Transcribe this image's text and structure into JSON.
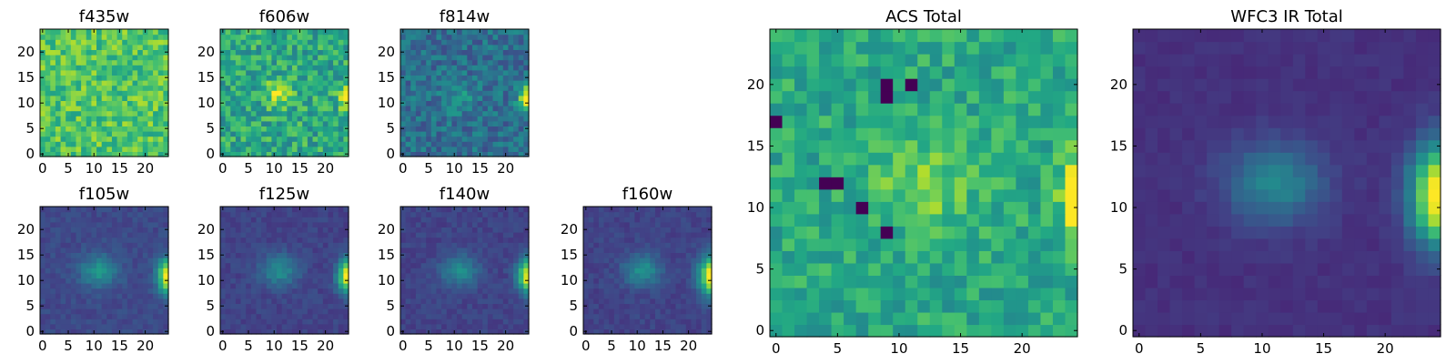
{
  "chart_data": [
    {
      "type": "heatmap",
      "title": "f435w",
      "colormap": "viridis",
      "x_ticks": [
        "0",
        "5",
        "10",
        "15",
        "20"
      ],
      "y_ticks": [
        "0",
        "5",
        "10",
        "15",
        "20"
      ],
      "xlim": [
        -0.5,
        24.5
      ],
      "ylim": [
        -0.5,
        24.5
      ],
      "grid": false,
      "pattern": {
        "background": 0.72,
        "noise": 0.32,
        "seed": 11,
        "blobs": []
      }
    },
    {
      "type": "heatmap",
      "title": "f606w",
      "colormap": "viridis",
      "x_ticks": [
        "0",
        "5",
        "10",
        "15",
        "20"
      ],
      "y_ticks": [
        "0",
        "5",
        "10",
        "15",
        "20"
      ],
      "xlim": [
        -0.5,
        24.5
      ],
      "ylim": [
        -0.5,
        24.5
      ],
      "grid": false,
      "pattern": {
        "background": 0.6,
        "noise": 0.36,
        "seed": 23,
        "blobs": [
          {
            "x": 11,
            "y": 12,
            "sx": 1.8,
            "sy": 1.8,
            "amp": 0.35
          },
          {
            "x": 24.5,
            "y": 11,
            "sx": 1.3,
            "sy": 1.6,
            "amp": 0.45
          }
        ]
      }
    },
    {
      "type": "heatmap",
      "title": "f814w",
      "colormap": "viridis",
      "x_ticks": [
        "0",
        "5",
        "10",
        "15",
        "20"
      ],
      "y_ticks": [
        "0",
        "5",
        "10",
        "15",
        "20"
      ],
      "xlim": [
        -0.5,
        24.5
      ],
      "ylim": [
        -0.5,
        24.5
      ],
      "grid": false,
      "pattern": {
        "background": 0.36,
        "noise": 0.26,
        "seed": 37,
        "blobs": [
          {
            "x": 11,
            "y": 11,
            "sx": 2.2,
            "sy": 2,
            "amp": 0.15
          },
          {
            "x": 24.5,
            "y": 11,
            "sx": 1.2,
            "sy": 1.7,
            "amp": 0.85
          }
        ]
      }
    },
    {
      "type": "heatmap",
      "title": "f105w",
      "colormap": "viridis",
      "x_ticks": [
        "0",
        "5",
        "10",
        "15",
        "20"
      ],
      "y_ticks": [
        "0",
        "5",
        "10",
        "15",
        "20"
      ],
      "xlim": [
        -0.5,
        24.5
      ],
      "ylim": [
        -0.5,
        24.5
      ],
      "grid": false,
      "pattern": {
        "background": 0.22,
        "noise": 0.09,
        "seed": 41,
        "blobs": [
          {
            "x": 11,
            "y": 12,
            "sx": 2.6,
            "sy": 2.2,
            "amp": 0.3
          },
          {
            "x": 24.8,
            "y": 11,
            "sx": 1.6,
            "sy": 2.3,
            "amp": 0.9
          }
        ]
      }
    },
    {
      "type": "heatmap",
      "title": "f125w",
      "colormap": "viridis",
      "x_ticks": [
        "0",
        "5",
        "10",
        "15",
        "20"
      ],
      "y_ticks": [
        "0",
        "5",
        "10",
        "15",
        "20"
      ],
      "xlim": [
        -0.5,
        24.5
      ],
      "ylim": [
        -0.5,
        24.5
      ],
      "grid": false,
      "pattern": {
        "background": 0.2,
        "noise": 0.09,
        "seed": 53,
        "blobs": [
          {
            "x": 11,
            "y": 12,
            "sx": 2.6,
            "sy": 2.2,
            "amp": 0.28
          },
          {
            "x": 24.8,
            "y": 11,
            "sx": 1.6,
            "sy": 2.3,
            "amp": 0.9
          }
        ]
      }
    },
    {
      "type": "heatmap",
      "title": "f140w",
      "colormap": "viridis",
      "x_ticks": [
        "0",
        "5",
        "10",
        "15",
        "20"
      ],
      "y_ticks": [
        "0",
        "5",
        "10",
        "15",
        "20"
      ],
      "xlim": [
        -0.5,
        24.5
      ],
      "ylim": [
        -0.5,
        24.5
      ],
      "grid": false,
      "pattern": {
        "background": 0.2,
        "noise": 0.09,
        "seed": 67,
        "blobs": [
          {
            "x": 11,
            "y": 12,
            "sx": 2.6,
            "sy": 2.2,
            "amp": 0.28
          },
          {
            "x": 24.8,
            "y": 11,
            "sx": 1.6,
            "sy": 2.3,
            "amp": 0.88
          }
        ]
      }
    },
    {
      "type": "heatmap",
      "title": "f160w",
      "colormap": "viridis",
      "x_ticks": [
        "0",
        "5",
        "10",
        "15",
        "20"
      ],
      "y_ticks": [
        "0",
        "5",
        "10",
        "15",
        "20"
      ],
      "xlim": [
        -0.5,
        24.5
      ],
      "ylim": [
        -0.5,
        24.5
      ],
      "grid": false,
      "pattern": {
        "background": 0.2,
        "noise": 0.09,
        "seed": 79,
        "blobs": [
          {
            "x": 11,
            "y": 12,
            "sx": 2.6,
            "sy": 2.2,
            "amp": 0.3
          },
          {
            "x": 24.8,
            "y": 11,
            "sx": 1.8,
            "sy": 2.6,
            "amp": 0.92
          }
        ]
      }
    },
    {
      "type": "heatmap",
      "title": "ACS Total",
      "colormap": "viridis",
      "x_ticks": [
        "0",
        "5",
        "10",
        "15",
        "20"
      ],
      "y_ticks": [
        "0",
        "5",
        "10",
        "15",
        "20"
      ],
      "xlim": [
        -0.5,
        24.5
      ],
      "ylim": [
        -0.5,
        24.5
      ],
      "grid": false,
      "pattern": {
        "background": 0.6,
        "noise": 0.26,
        "seed": 91,
        "blobs": [
          {
            "x": 12,
            "y": 12,
            "sx": 3,
            "sy": 2.6,
            "amp": 0.2
          },
          {
            "x": 24.5,
            "y": 11,
            "sx": 0.9,
            "sy": 2.3,
            "amp": 0.55
          }
        ],
        "dark": [
          [
            0,
            17
          ],
          [
            4,
            12
          ],
          [
            5,
            12
          ],
          [
            7,
            10
          ],
          [
            9,
            8
          ],
          [
            9,
            19
          ],
          [
            9,
            20
          ],
          [
            11,
            20
          ]
        ]
      }
    },
    {
      "type": "heatmap",
      "title": "WFC3 IR Total",
      "colormap": "viridis",
      "x_ticks": [
        "0",
        "5",
        "10",
        "15",
        "20"
      ],
      "y_ticks": [
        "0",
        "5",
        "10",
        "15",
        "20"
      ],
      "xlim": [
        -0.5,
        24.5
      ],
      "ylim": [
        -0.5,
        24.5
      ],
      "grid": false,
      "pattern": {
        "background": 0.14,
        "noise": 0.05,
        "seed": 103,
        "blobs": [
          {
            "x": 11,
            "y": 12,
            "sx": 2.8,
            "sy": 2.3,
            "amp": 0.32
          },
          {
            "x": 24.8,
            "y": 11,
            "sx": 1.8,
            "sy": 2.8,
            "amp": 1.0
          }
        ]
      }
    }
  ]
}
